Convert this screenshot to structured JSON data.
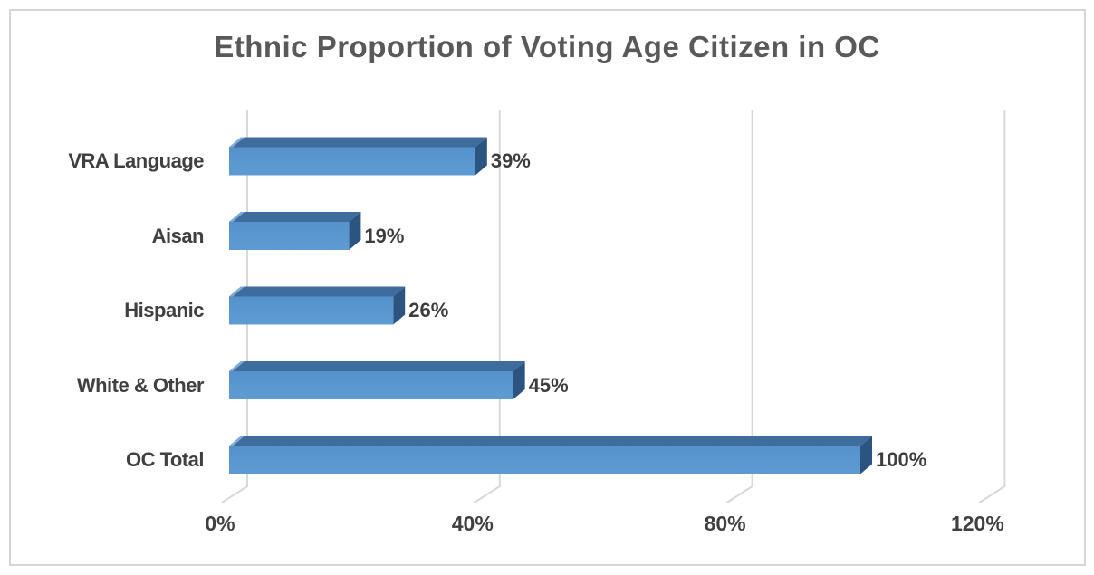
{
  "chart_data": {
    "type": "bar",
    "orientation": "horizontal",
    "style": "3d",
    "title": "Ethnic Proportion of Voting Age Citizen in OC",
    "categories": [
      "VRA Language",
      "Aisan",
      "Hispanic",
      "White & Other",
      "OC Total"
    ],
    "values": [
      39,
      19,
      26,
      45,
      100
    ],
    "data_labels": [
      "39%",
      "19%",
      "26%",
      "45%",
      "100%"
    ],
    "xlabel": "",
    "ylabel": "",
    "xlim": [
      0,
      120
    ],
    "x_ticks": [
      {
        "label": "0%",
        "value": 0
      },
      {
        "label": "40%",
        "value": 40
      },
      {
        "label": "80%",
        "value": 80
      },
      {
        "label": "120%",
        "value": 120
      }
    ],
    "grid": "vertical-gridlines-on",
    "legend": "none",
    "colors": {
      "bar_front": "#5592CB",
      "bar_front_light": "#5F9BD3",
      "bar_top": "#3D6C9D",
      "bar_side": "#2C5480",
      "gridline": "#D8D8D8",
      "label_text": "#404040",
      "title_text": "#595959",
      "frame_border": "#D5D5D5",
      "background": "#FFFFFF"
    }
  }
}
